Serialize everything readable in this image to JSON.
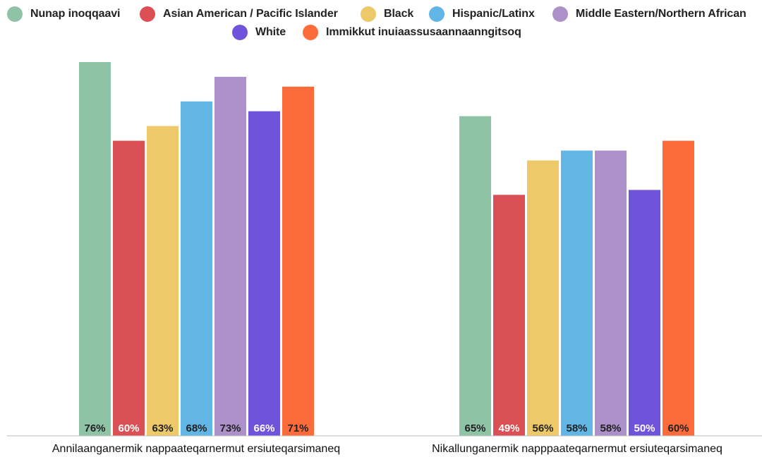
{
  "chart_data": {
    "type": "bar",
    "categories": [
      "Annilaanganermik nappaateqarnermut ersiuteqarsimaneq",
      "Nikallunganermik napppaateqarnermut ersiuteqarsimaneq"
    ],
    "series": [
      {
        "name": "Nunap inoqqaavi",
        "color": "#8fc3a6",
        "values": [
          76,
          65
        ]
      },
      {
        "name": "Asian American / Pacific Islander",
        "color": "#da5055",
        "values": [
          60,
          49
        ]
      },
      {
        "name": "Black",
        "color": "#eec96a",
        "values": [
          63,
          56
        ]
      },
      {
        "name": "Hispanic/Latinx",
        "color": "#62b6e6",
        "values": [
          68,
          58
        ]
      },
      {
        "name": "Middle Eastern/Northern African",
        "color": "#ab90c9",
        "values": [
          73,
          58
        ]
      },
      {
        "name": "White",
        "color": "#6f54db",
        "values": [
          66,
          50
        ]
      },
      {
        "name": "Immikkut inuiaassusaannaanngitsoq",
        "color": "#fe6b3a",
        "values": [
          71,
          60
        ]
      }
    ],
    "data_labels": [
      [
        "76%",
        "60%",
        "63%",
        "68%",
        "73%",
        "66%",
        "71%"
      ],
      [
        "65%",
        "49%",
        "56%",
        "58%",
        "58%",
        "50%",
        "60%"
      ]
    ],
    "label_colors": [
      [
        "#222222",
        "#ffffff",
        "#222222",
        "#222222",
        "#222222",
        "#ffffff",
        "#222222"
      ],
      [
        "#222222",
        "#ffffff",
        "#222222",
        "#222222",
        "#222222",
        "#ffffff",
        "#222222"
      ]
    ],
    "ylim": [
      0,
      76
    ],
    "grid": false,
    "legend_position": "top",
    "title": "",
    "xlabel": "",
    "ylabel": ""
  }
}
